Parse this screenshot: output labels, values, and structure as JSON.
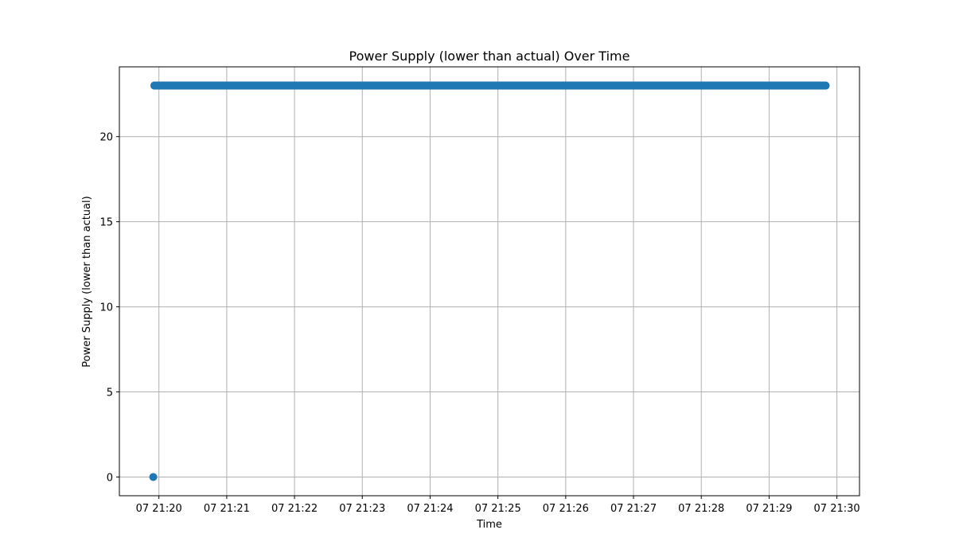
{
  "chart_data": {
    "type": "scatter",
    "title": "Power Supply (lower than actual) Over Time",
    "xlabel": "Time",
    "ylabel": "Power Supply (lower than actual)",
    "x_axis_kind": "time",
    "x_start": "2024-01-07T21:19:55",
    "x_end": "2024-01-07T21:29:50",
    "xlim": [
      "2024-01-07T21:19:25",
      "2024-01-07T21:30:20"
    ],
    "x_ticks": [
      "2024-01-07T21:20:00",
      "2024-01-07T21:21:00",
      "2024-01-07T21:22:00",
      "2024-01-07T21:23:00",
      "2024-01-07T21:24:00",
      "2024-01-07T21:25:00",
      "2024-01-07T21:26:00",
      "2024-01-07T21:27:00",
      "2024-01-07T21:28:00",
      "2024-01-07T21:29:00",
      "2024-01-07T21:30:00"
    ],
    "x_tick_labels": [
      "07 21:20",
      "07 21:21",
      "07 21:22",
      "07 21:23",
      "07 21:24",
      "07 21:25",
      "07 21:26",
      "07 21:27",
      "07 21:28",
      "07 21:29",
      "07 21:30"
    ],
    "ylim": [
      -1.1,
      24.1
    ],
    "y_ticks": [
      0,
      5,
      10,
      15,
      20
    ],
    "y_tick_labels": [
      "0",
      "5",
      "10",
      "15",
      "20"
    ],
    "grid": true,
    "legend": null,
    "series": [
      {
        "color": "#1f77b4",
        "points": [
          {
            "x": "2024-01-07T21:19:55",
            "y": 0
          },
          {
            "x": "2024-01-07T21:19:56",
            "y": 23
          },
          {
            "x": "2024-01-07T21:29:50",
            "y": 23
          }
        ],
        "constant_y_segment": {
          "from": "2024-01-07T21:19:56",
          "to": "2024-01-07T21:29:50",
          "y": 23
        }
      }
    ],
    "colors": {
      "marker": "#1f77b4",
      "grid": "#b0b0b0",
      "axes": "#000000"
    }
  }
}
